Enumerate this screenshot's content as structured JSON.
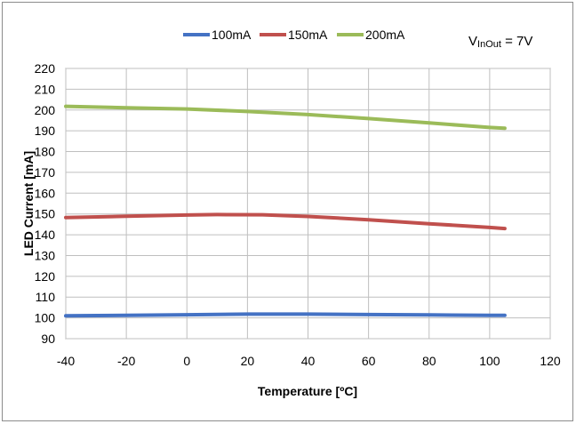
{
  "chart_data": {
    "type": "line",
    "title": "",
    "xlabel": "Temperature [ºC]",
    "ylabel": "LED Current [mA]",
    "xlim": [
      -40,
      120
    ],
    "ylim": [
      90,
      220
    ],
    "xticks": [
      -40,
      -20,
      0,
      20,
      40,
      60,
      80,
      100,
      120
    ],
    "yticks": [
      90,
      100,
      110,
      120,
      130,
      140,
      150,
      160,
      170,
      180,
      190,
      200,
      210,
      220
    ],
    "grid": true,
    "legend_position": "top",
    "annotation": {
      "main": "V",
      "sub": "InOut",
      "suffix": " = 7V"
    },
    "series": [
      {
        "name": "100mA",
        "color": "#4472c4",
        "x": [
          -40,
          -20,
          0,
          20,
          40,
          60,
          80,
          100,
          105
        ],
        "y": [
          101,
          101.2,
          101.5,
          101.8,
          101.8,
          101.6,
          101.4,
          101.2,
          101.2
        ]
      },
      {
        "name": "150mA",
        "color": "#c0504d",
        "x": [
          -40,
          -20,
          0,
          10,
          25,
          40,
          60,
          80,
          100,
          105
        ],
        "y": [
          148.3,
          148.9,
          149.5,
          149.7,
          149.6,
          148.8,
          147.2,
          145.3,
          143.5,
          143
        ]
      },
      {
        "name": "200mA",
        "color": "#9bbb59",
        "x": [
          -40,
          -20,
          0,
          20,
          40,
          60,
          80,
          100,
          105
        ],
        "y": [
          201.8,
          201.1,
          200.5,
          199.3,
          197.8,
          195.9,
          193.8,
          191.6,
          191.2
        ]
      }
    ]
  }
}
